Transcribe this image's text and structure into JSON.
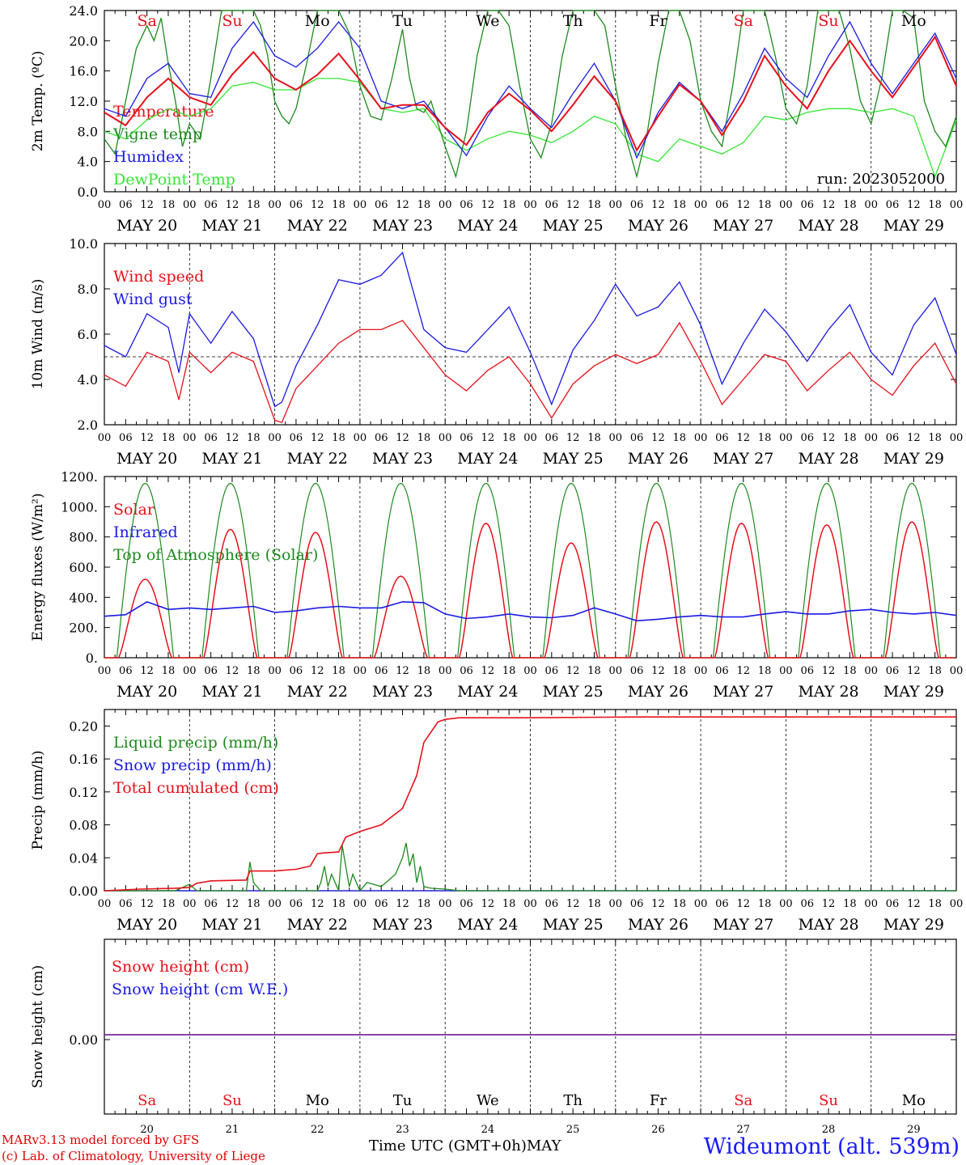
{
  "footer": {
    "credit_line1": "MARv3.13 model forced by GFS",
    "credit_line2": "(c) Lab. of Climatology, University of Liege",
    "time_axis": "Time UTC (GMT+0h)MAY",
    "station": "Wideumont (alt. 539m)"
  },
  "colors": {
    "red": "#e8101a",
    "green": "#1e8a1e",
    "blue": "#1a1ae6",
    "lightgreen": "#33e633",
    "purple": "#7a2a9a"
  },
  "chart_data": [
    {
      "type": "line",
      "id": "temp",
      "ylabel": "2m Temp. (ºC)",
      "ylim": [
        0,
        24
      ],
      "yticks": [
        "0.0",
        "4.0",
        "8.0",
        "12.0",
        "16.0",
        "20.0",
        "24.0"
      ],
      "yticks_values": [
        0,
        4,
        8,
        12,
        16,
        20,
        24
      ],
      "x_hour_labels": [
        "00",
        "06",
        "12",
        "18"
      ],
      "date_labels": [
        "MAY 20",
        "MAY 21",
        "MAY 22",
        "MAY 23",
        "MAY 24",
        "MAY 25",
        "MAY 26",
        "MAY 27",
        "MAY 28",
        "MAY 29"
      ],
      "day_labels": [
        "Sa",
        "Su",
        "Mo",
        "Tu",
        "We",
        "Th",
        "Fr",
        "Sa",
        "Su",
        "Mo"
      ],
      "day_label_colors": [
        "red",
        "red",
        "black",
        "black",
        "black",
        "black",
        "black",
        "red",
        "red",
        "black"
      ],
      "run_label": "run: 2023052000",
      "legend": [
        "Temperature",
        "Vigne temp",
        "Humidex",
        "DewPoint Temp"
      ],
      "series": [
        {
          "name": "Temperature",
          "color": "red",
          "x": [
            0,
            6,
            12,
            18,
            24,
            30,
            36,
            42,
            48,
            54,
            60,
            66,
            72,
            78,
            84,
            90,
            96,
            102,
            108,
            114,
            120,
            126,
            132,
            138,
            144,
            150,
            156,
            162,
            168,
            174,
            180,
            186,
            192,
            198,
            204,
            210,
            216,
            222,
            228,
            234,
            240
          ],
          "values": [
            10.5,
            8.8,
            12.5,
            15,
            12.5,
            11.5,
            15.5,
            18.5,
            15,
            13.5,
            15.5,
            18.3,
            14.8,
            11,
            11.5,
            11.5,
            8.5,
            6.2,
            10.5,
            13,
            10.8,
            8,
            11.5,
            15.3,
            12,
            5.5,
            10,
            14.2,
            12,
            7.5,
            12,
            18,
            14,
            11,
            16,
            20,
            16,
            12.5,
            16.5,
            20.5,
            14
          ]
        },
        {
          "name": "Vigne temp",
          "color": "green",
          "x": [
            0,
            3,
            6,
            9,
            12,
            14,
            16,
            18,
            20,
            22,
            24,
            27,
            30,
            33,
            36,
            39,
            42,
            44,
            46,
            48,
            50,
            52,
            54,
            57,
            60,
            63,
            66,
            69,
            72,
            75,
            78,
            81,
            84,
            86,
            88,
            90,
            92,
            96,
            99,
            102,
            105,
            108,
            111,
            114,
            117,
            120,
            123,
            126,
            129,
            132,
            135,
            138,
            141,
            144,
            147,
            150,
            153,
            156,
            159,
            162,
            165,
            168,
            171,
            174,
            177,
            180,
            183,
            186,
            189,
            192,
            195,
            198,
            201,
            204,
            207,
            210,
            213,
            216,
            219,
            222,
            225,
            228,
            231,
            234,
            237,
            240
          ],
          "values": [
            7,
            5,
            12,
            19,
            22,
            20,
            23,
            17,
            12,
            6,
            9,
            7,
            15,
            24,
            24,
            24,
            24,
            22,
            18,
            12,
            10,
            9,
            11,
            17,
            24,
            24,
            24,
            21,
            14,
            10,
            9.5,
            15,
            21.5,
            15,
            11,
            10.5,
            12,
            6,
            2,
            8,
            18,
            24,
            24,
            22,
            14,
            7,
            4.5,
            9,
            18,
            24,
            24,
            24,
            22,
            14,
            7,
            2,
            8,
            17,
            24,
            24,
            20,
            12,
            8,
            6,
            14,
            24,
            24,
            24,
            18,
            11,
            9,
            14,
            24,
            24,
            24,
            19,
            12,
            9,
            15,
            24,
            24,
            23,
            12,
            8,
            6,
            10
          ]
        },
        {
          "name": "Humidex",
          "color": "blue",
          "x": [
            0,
            6,
            12,
            18,
            24,
            30,
            36,
            42,
            48,
            54,
            60,
            66,
            72,
            78,
            84,
            90,
            96,
            102,
            108,
            114,
            120,
            126,
            132,
            138,
            144,
            150,
            156,
            162,
            168,
            174,
            180,
            186,
            192,
            198,
            204,
            210,
            216,
            222,
            228,
            234,
            240
          ],
          "values": [
            11,
            10,
            15,
            17,
            13,
            12.5,
            19,
            22.5,
            18,
            16.5,
            19,
            22.5,
            19,
            12,
            11,
            12,
            8.5,
            4.8,
            10,
            14,
            11,
            8.5,
            13,
            17,
            12,
            4.5,
            10.5,
            14.5,
            12,
            8,
            13,
            19,
            15,
            12.5,
            18,
            22.5,
            17,
            13,
            17,
            21,
            15
          ]
        },
        {
          "name": "DewPoint Temp",
          "color": "lightgreen",
          "x": [
            0,
            6,
            12,
            18,
            24,
            30,
            36,
            42,
            48,
            54,
            60,
            66,
            72,
            78,
            84,
            90,
            96,
            102,
            108,
            114,
            120,
            126,
            132,
            138,
            144,
            150,
            156,
            162,
            168,
            174,
            180,
            186,
            192,
            198,
            204,
            210,
            216,
            222,
            228,
            234,
            240
          ],
          "values": [
            8,
            7,
            9.5,
            11,
            10,
            11,
            14,
            14.5,
            13.5,
            13.5,
            15,
            15,
            14.5,
            11,
            10.5,
            11,
            7,
            5.5,
            7,
            8,
            7.5,
            6.5,
            8,
            10,
            9,
            5,
            4,
            7,
            6,
            5,
            6.5,
            10,
            9.5,
            10.5,
            11,
            11,
            10.5,
            11,
            10,
            2,
            9.5
          ]
        }
      ]
    },
    {
      "type": "line",
      "id": "wind",
      "ylabel": "10m Wind (m/s)",
      "ylim": [
        2,
        10
      ],
      "yticks": [
        "2.0",
        "4.0",
        "6.0",
        "8.0",
        "10.0"
      ],
      "yticks_values": [
        2,
        4,
        6,
        8,
        10
      ],
      "ref_line": 5,
      "date_labels": [
        "MAY 20",
        "MAY 21",
        "MAY 22",
        "MAY 23",
        "MAY 24",
        "MAY 25",
        "MAY 26",
        "MAY 27",
        "MAY 28",
        "MAY 29"
      ],
      "legend": [
        "Wind speed",
        "Wind gust"
      ],
      "series": [
        {
          "name": "Wind speed",
          "color": "red",
          "x": [
            0,
            6,
            12,
            18,
            21,
            24,
            30,
            36,
            42,
            48,
            50,
            54,
            60,
            66,
            72,
            78,
            84,
            90,
            96,
            102,
            108,
            114,
            120,
            126,
            132,
            138,
            144,
            150,
            156,
            162,
            168,
            174,
            180,
            186,
            192,
            198,
            204,
            210,
            216,
            222,
            228,
            234,
            240
          ],
          "values": [
            4.2,
            3.7,
            5.2,
            4.8,
            3.1,
            5.2,
            4.3,
            5.2,
            4.8,
            2.2,
            2.1,
            3.6,
            4.6,
            5.6,
            6.2,
            6.2,
            6.6,
            5.4,
            4.2,
            3.5,
            4.4,
            5,
            3.8,
            2.3,
            3.8,
            4.6,
            5.1,
            4.7,
            5.1,
            6.5,
            4.8,
            2.9,
            4.0,
            5.1,
            4.8,
            3.5,
            4.4,
            5.2,
            4.0,
            3.3,
            4.6,
            5.6,
            3.8
          ]
        },
        {
          "name": "Wind gust",
          "color": "blue",
          "x": [
            0,
            6,
            12,
            18,
            21,
            24,
            30,
            36,
            42,
            48,
            50,
            54,
            60,
            66,
            72,
            78,
            84,
            90,
            96,
            102,
            108,
            114,
            120,
            126,
            132,
            138,
            144,
            150,
            156,
            162,
            168,
            174,
            180,
            186,
            192,
            198,
            204,
            210,
            216,
            222,
            228,
            234,
            240
          ],
          "values": [
            5.5,
            5.0,
            6.9,
            6.3,
            4.3,
            6.9,
            5.6,
            7.0,
            5.8,
            2.8,
            3.0,
            4.6,
            6.4,
            8.4,
            8.2,
            8.6,
            9.6,
            6.2,
            5.4,
            5.2,
            6.2,
            7.2,
            5.2,
            2.9,
            5.3,
            6.6,
            8.2,
            6.8,
            7.2,
            8.3,
            6.4,
            3.8,
            5.6,
            7.1,
            6.1,
            4.8,
            6.2,
            7.3,
            5.2,
            4.2,
            6.4,
            7.6,
            5.1
          ]
        }
      ]
    },
    {
      "type": "line",
      "id": "energy",
      "ylabel": "Energy fluxes (W/m²)",
      "ylim": [
        0,
        1200
      ],
      "yticks": [
        "0.",
        "200.",
        "400.",
        "600.",
        "800.",
        "1000.",
        "1200."
      ],
      "yticks_values": [
        0,
        200,
        400,
        600,
        800,
        1000,
        1200
      ],
      "date_labels": [
        "MAY 20",
        "MAY 21",
        "MAY 22",
        "MAY 23",
        "MAY 24",
        "MAY 25",
        "MAY 26",
        "MAY 27",
        "MAY 28",
        "MAY 29"
      ],
      "legend": [
        "Solar",
        "Infrared",
        "Top of Atmosphere (Solar)"
      ],
      "toa_daily_peak": 1155,
      "solar_daily_peak": [
        520,
        850,
        830,
        540,
        890,
        760,
        900,
        890,
        880,
        900
      ],
      "series": [
        {
          "name": "Infrared",
          "color": "blue",
          "x": [
            0,
            6,
            12,
            18,
            24,
            30,
            36,
            42,
            48,
            54,
            60,
            66,
            72,
            78,
            84,
            90,
            96,
            102,
            108,
            114,
            120,
            126,
            132,
            138,
            144,
            150,
            156,
            162,
            168,
            174,
            180,
            186,
            192,
            198,
            204,
            210,
            216,
            222,
            228,
            234,
            240
          ],
          "values": [
            275,
            285,
            370,
            320,
            330,
            320,
            330,
            340,
            300,
            310,
            330,
            340,
            330,
            330,
            370,
            365,
            290,
            260,
            270,
            290,
            270,
            265,
            280,
            330,
            290,
            245,
            255,
            270,
            280,
            270,
            270,
            290,
            305,
            290,
            290,
            310,
            320,
            300,
            290,
            300,
            280
          ]
        }
      ]
    },
    {
      "type": "line",
      "id": "precip",
      "ylabel": "Precip (mm/h)",
      "ylim": [
        0,
        0.22
      ],
      "yticks": [
        "0.00",
        "0.04",
        "0.08",
        "0.12",
        "0.16",
        "0.20"
      ],
      "yticks_values": [
        0,
        0.04,
        0.08,
        0.12,
        0.16,
        0.2
      ],
      "date_labels": [
        "MAY 20",
        "MAY 21",
        "MAY 22",
        "MAY 23",
        "MAY 24",
        "MAY 25",
        "MAY 26",
        "MAY 27",
        "MAY 28",
        "MAY 29"
      ],
      "legend": [
        "Liquid precip (mm/h)",
        "Snow precip (mm/h)",
        "Total cumulated (cm)"
      ],
      "series": [
        {
          "name": "Total cumulated (cm)",
          "color": "red",
          "x": [
            0,
            10,
            20,
            24,
            26,
            30,
            40,
            41,
            44,
            48,
            54,
            58,
            60,
            62,
            66,
            68,
            72,
            78,
            84,
            88,
            90,
            94,
            96,
            100,
            120,
            150,
            240
          ],
          "values": [
            0,
            0.002,
            0.003,
            0.004,
            0.009,
            0.012,
            0.013,
            0.024,
            0.024,
            0.024,
            0.026,
            0.03,
            0.045,
            0.046,
            0.047,
            0.065,
            0.072,
            0.08,
            0.1,
            0.14,
            0.18,
            0.205,
            0.208,
            0.21,
            0.21,
            0.211,
            0.211
          ]
        },
        {
          "name": "Liquid precip (mm/h)",
          "color": "green",
          "x": [
            0,
            20,
            24,
            25,
            26,
            40,
            41,
            42,
            44,
            60,
            61,
            62,
            63,
            64,
            66,
            67,
            68,
            69,
            70,
            72,
            74,
            78,
            82,
            84,
            85,
            86,
            87,
            88,
            89,
            90,
            92,
            96,
            100,
            240
          ],
          "values": [
            0,
            0,
            0.008,
            0.004,
            0,
            0,
            0.035,
            0.01,
            0,
            0,
            0.01,
            0.03,
            0.005,
            0.02,
            0,
            0.055,
            0.03,
            0.005,
            0.02,
            0,
            0.01,
            0.005,
            0.02,
            0.04,
            0.058,
            0.03,
            0.045,
            0.01,
            0.03,
            0.005,
            0.003,
            0.002,
            0,
            0
          ]
        },
        {
          "name": "Snow precip (mm/h)",
          "color": "blue",
          "x": [
            0,
            240
          ],
          "values": [
            0,
            0
          ]
        }
      ]
    },
    {
      "type": "line",
      "id": "snow",
      "ylabel": "Snow height (cm)",
      "yticks": [
        "0.00"
      ],
      "yticks_values": [
        0
      ],
      "legend": [
        "Snow height (cm)",
        "Snow height (cm W.E.)"
      ],
      "day_labels": [
        "Sa",
        "Su",
        "Mo",
        "Tu",
        "We",
        "Th",
        "Fr",
        "Sa",
        "Su",
        "Mo"
      ],
      "day_label_colors": [
        "red",
        "red",
        "black",
        "black",
        "black",
        "black",
        "black",
        "red",
        "red",
        "black"
      ],
      "day_numbers": [
        "20",
        "21",
        "22",
        "23",
        "24",
        "25",
        "26",
        "27",
        "28",
        "29"
      ],
      "series": [
        {
          "name": "Snow height (cm)",
          "color": "red",
          "x": [
            0,
            240
          ],
          "values": [
            0,
            0
          ]
        },
        {
          "name": "Snow height (cm W.E.)",
          "color": "blue",
          "x": [
            0,
            240
          ],
          "values": [
            0,
            0
          ]
        }
      ]
    }
  ]
}
